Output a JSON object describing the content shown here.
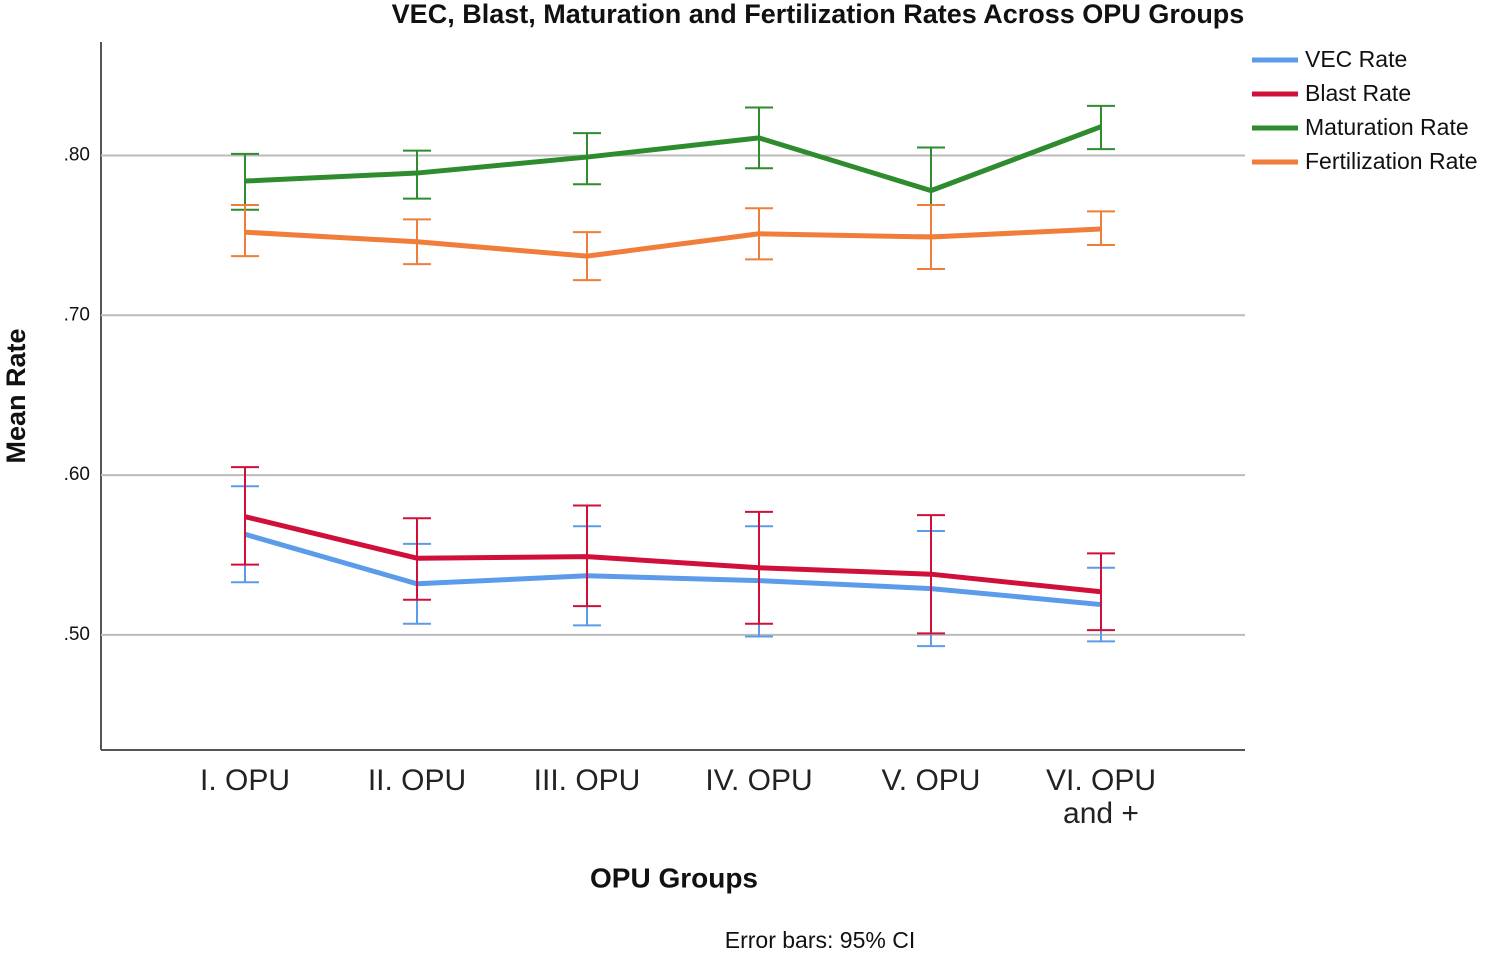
{
  "chart_data": {
    "type": "line",
    "title": "VEC, Blast, Maturation and Fertilization Rates Across OPU Groups",
    "x_label": "OPU Groups",
    "y_label": "Mean Rate",
    "note": "Error bars: 95% CI",
    "categories": [
      "I. OPU",
      "II. OPU",
      "III. OPU",
      "IV. OPU",
      "V. OPU",
      "VI. OPU and +"
    ],
    "ylim": [
      0.428,
      0.871
    ],
    "yticks": [
      {
        "value": 0.5,
        "label": ".50"
      },
      {
        "value": 0.6,
        "label": ".60"
      },
      {
        "value": 0.7,
        "label": ".70"
      },
      {
        "value": 0.8,
        "label": ".80"
      }
    ],
    "grid": true,
    "legend": "top-right",
    "series": [
      {
        "name": "VEC Rate",
        "color": "#5b9bea",
        "values": [
          0.563,
          0.532,
          0.537,
          0.534,
          0.529,
          0.519
        ],
        "upper": [
          0.593,
          0.557,
          0.568,
          0.568,
          0.565,
          0.542
        ],
        "lower": [
          0.533,
          0.507,
          0.506,
          0.499,
          0.493,
          0.496
        ]
      },
      {
        "name": "Blast Rate",
        "color": "#d0103a",
        "values": [
          0.574,
          0.548,
          0.549,
          0.542,
          0.538,
          0.527
        ],
        "upper": [
          0.605,
          0.573,
          0.581,
          0.577,
          0.575,
          0.551
        ],
        "lower": [
          0.544,
          0.522,
          0.518,
          0.507,
          0.501,
          0.503
        ]
      },
      {
        "name": "Maturation Rate",
        "color": "#2e8b2e",
        "values": [
          0.784,
          0.789,
          0.799,
          0.811,
          0.778,
          0.818
        ],
        "upper": [
          0.801,
          0.803,
          0.814,
          0.83,
          0.805,
          0.831
        ],
        "lower": [
          0.766,
          0.773,
          0.782,
          0.792,
          0.75,
          0.804
        ]
      },
      {
        "name": "Fertilization Rate",
        "color": "#f07d3a",
        "values": [
          0.752,
          0.746,
          0.737,
          0.751,
          0.749,
          0.754
        ],
        "upper": [
          0.769,
          0.76,
          0.752,
          0.767,
          0.769,
          0.765
        ],
        "lower": [
          0.737,
          0.732,
          0.722,
          0.735,
          0.729,
          0.744
        ]
      }
    ]
  }
}
